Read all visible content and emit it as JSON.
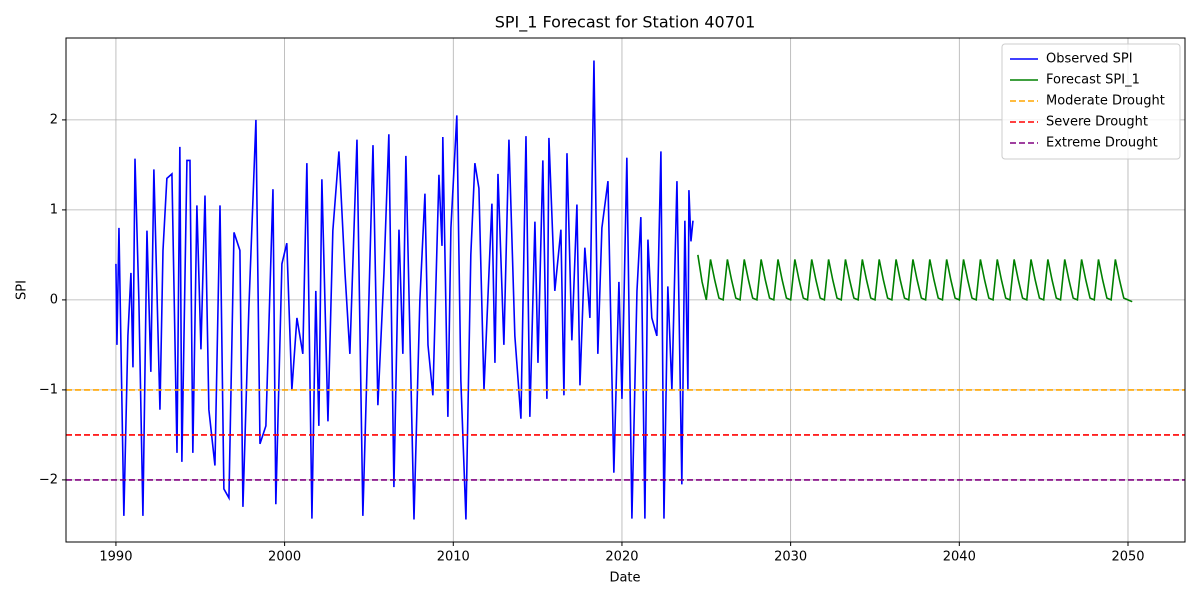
{
  "chart_data": {
    "type": "line",
    "title": "SPI_1 Forecast for Station 40701",
    "x_label": "Date",
    "y_label": "SPI",
    "xlim": [
      1987.04,
      2053.38
    ],
    "ylim": [
      -2.69,
      2.91
    ],
    "xticks": [
      1990,
      2000,
      2010,
      2020,
      2030,
      2040,
      2050
    ],
    "yticks": [
      {
        "value": -2,
        "label": "−2"
      },
      {
        "value": -1,
        "label": "−1"
      },
      0,
      1,
      2
    ],
    "grid": true,
    "legend": "upper right",
    "series": [
      {
        "name": "Observed SPI",
        "color": "#0000ff",
        "x": [
          1990.0,
          1990.06,
          1990.18,
          1990.47,
          1990.71,
          1990.89,
          1991.01,
          1991.13,
          1991.36,
          1991.6,
          1991.84,
          1992.07,
          1992.25,
          1992.61,
          1992.79,
          1993.02,
          1993.32,
          1993.62,
          1993.79,
          1993.91,
          1994.21,
          1994.39,
          1994.56,
          1994.8,
          1995.04,
          1995.28,
          1995.51,
          1995.87,
          1996.17,
          1996.4,
          1996.7,
          1997.0,
          1997.35,
          1997.53,
          1997.88,
          1998.3,
          1998.54,
          1998.89,
          1999.31,
          1999.48,
          1999.84,
          2000.13,
          2000.43,
          2000.73,
          2001.08,
          2001.32,
          2001.62,
          2001.85,
          2002.03,
          2002.21,
          2002.57,
          2002.86,
          2003.22,
          2003.58,
          2003.87,
          2004.29,
          2004.64,
          2004.94,
          2005.24,
          2005.53,
          2005.89,
          2006.18,
          2006.48,
          2006.78,
          2007.01,
          2007.19,
          2007.49,
          2007.67,
          2008.02,
          2008.32,
          2008.5,
          2008.79,
          2009.15,
          2009.33,
          2009.38,
          2009.68,
          2009.86,
          2010.21,
          2010.45,
          2010.75,
          2011.04,
          2011.28,
          2011.52,
          2011.82,
          2012.29,
          2012.47,
          2012.65,
          2013.0,
          2013.3,
          2013.65,
          2014.01,
          2014.31,
          2014.54,
          2014.84,
          2015.02,
          2015.31,
          2015.55,
          2015.67,
          2016.02,
          2016.38,
          2016.56,
          2016.74,
          2017.03,
          2017.33,
          2017.51,
          2017.8,
          2018.1,
          2018.34,
          2018.57,
          2018.81,
          2019.17,
          2019.52,
          2019.82,
          2020.0,
          2020.29,
          2020.59,
          2020.89,
          2021.12,
          2021.36,
          2021.54,
          2021.77,
          2022.07,
          2022.31,
          2022.49,
          2022.72,
          2022.96,
          2023.26,
          2023.55,
          2023.73,
          2023.91,
          2023.97,
          2024.09,
          2024.21
        ],
        "values": [
          0.4,
          -0.5,
          0.8,
          -2.4,
          -0.4,
          0.3,
          -0.75,
          1.57,
          0.0,
          -2.4,
          0.77,
          -0.8,
          1.45,
          -1.22,
          0.55,
          1.35,
          1.4,
          -1.7,
          1.7,
          -1.8,
          1.55,
          1.55,
          -1.7,
          1.05,
          -0.55,
          1.16,
          -1.22,
          -1.84,
          1.05,
          -2.1,
          -2.2,
          0.75,
          0.55,
          -2.3,
          -0.1,
          2.0,
          -1.6,
          -1.4,
          1.23,
          -2.27,
          0.4,
          0.63,
          -1.0,
          -0.2,
          -0.6,
          1.52,
          -2.43,
          0.1,
          -1.4,
          1.34,
          -1.35,
          0.77,
          1.65,
          0.3,
          -0.6,
          1.78,
          -2.4,
          -0.4,
          1.72,
          -1.17,
          0.3,
          1.84,
          -2.08,
          0.78,
          -0.6,
          1.6,
          -0.9,
          -2.44,
          0.0,
          1.18,
          -0.5,
          -1.06,
          1.39,
          0.6,
          1.81,
          -1.3,
          0.8,
          2.05,
          -0.9,
          -2.44,
          0.5,
          1.52,
          1.24,
          -1.0,
          1.07,
          -0.7,
          1.4,
          -0.5,
          1.78,
          -0.4,
          -1.32,
          1.82,
          -1.3,
          0.87,
          -0.7,
          1.55,
          -1.1,
          1.8,
          0.1,
          0.78,
          -1.06,
          1.63,
          -0.45,
          1.06,
          -0.95,
          0.58,
          -0.2,
          2.66,
          -0.6,
          0.8,
          1.32,
          -1.92,
          0.2,
          -1.1,
          1.58,
          -2.43,
          0.1,
          0.92,
          -2.43,
          0.67,
          -0.2,
          -0.4,
          1.65,
          -2.43,
          0.15,
          -1.0,
          1.32,
          -2.05,
          0.88,
          -1.0,
          1.22,
          0.65,
          0.88
        ]
      },
      {
        "name": "Forecast SPI_1",
        "color": "#008000",
        "x": [
          2024.5,
          2024.75,
          2025,
          2025.25,
          2025.5,
          2025.75,
          2026,
          2026.25,
          2026.5,
          2026.75,
          2027,
          2027.25,
          2027.5,
          2027.75,
          2028,
          2028.25,
          2028.5,
          2028.75,
          2029,
          2029.25,
          2029.5,
          2029.75,
          2030,
          2030.25,
          2030.5,
          2030.75,
          2031,
          2031.25,
          2031.5,
          2031.75,
          2032,
          2032.25,
          2032.5,
          2032.75,
          2033,
          2033.25,
          2033.5,
          2033.75,
          2034,
          2034.25,
          2034.5,
          2034.75,
          2035,
          2035.25,
          2035.5,
          2035.75,
          2036,
          2036.25,
          2036.5,
          2036.75,
          2037,
          2037.25,
          2037.5,
          2037.75,
          2038,
          2038.25,
          2038.5,
          2038.75,
          2039,
          2039.25,
          2039.5,
          2039.75,
          2040,
          2040.25,
          2040.5,
          2040.75,
          2041,
          2041.25,
          2041.5,
          2041.75,
          2042,
          2042.25,
          2042.5,
          2042.75,
          2043,
          2043.25,
          2043.5,
          2043.75,
          2044,
          2044.25,
          2044.5,
          2044.75,
          2045,
          2045.25,
          2045.5,
          2045.75,
          2046,
          2046.25,
          2046.5,
          2046.75,
          2047,
          2047.25,
          2047.5,
          2047.75,
          2048,
          2048.25,
          2048.5,
          2048.75,
          2049,
          2049.25,
          2049.5,
          2049.75,
          2050,
          2050.25
        ],
        "values": [
          0.5,
          0.2,
          0.0,
          0.45,
          0.22,
          0.02,
          0.0,
          0.45,
          0.22,
          0.02,
          0.0,
          0.45,
          0.22,
          0.02,
          0.0,
          0.45,
          0.22,
          0.02,
          0.0,
          0.45,
          0.22,
          0.02,
          0.0,
          0.45,
          0.22,
          0.02,
          0.0,
          0.45,
          0.22,
          0.02,
          0.0,
          0.45,
          0.22,
          0.02,
          0.0,
          0.45,
          0.22,
          0.02,
          0.0,
          0.45,
          0.22,
          0.02,
          0.0,
          0.45,
          0.22,
          0.02,
          0.0,
          0.45,
          0.22,
          0.02,
          0.0,
          0.45,
          0.22,
          0.02,
          0.0,
          0.45,
          0.22,
          0.02,
          0.0,
          0.45,
          0.22,
          0.02,
          0.0,
          0.45,
          0.22,
          0.02,
          0.0,
          0.45,
          0.22,
          0.02,
          0.0,
          0.45,
          0.22,
          0.02,
          0.0,
          0.45,
          0.22,
          0.02,
          0.0,
          0.45,
          0.22,
          0.02,
          0.0,
          0.45,
          0.22,
          0.02,
          0.0,
          0.45,
          0.22,
          0.02,
          0.0,
          0.45,
          0.22,
          0.02,
          0.0,
          0.45,
          0.22,
          0.02,
          0.0,
          0.45,
          0.22,
          0.02,
          0.0,
          -0.02
        ]
      }
    ],
    "hlines": [
      {
        "name": "Moderate Drought",
        "color": "#ffa500",
        "value": -1
      },
      {
        "name": "Severe Drought",
        "color": "#ff0000",
        "value": -1.5
      },
      {
        "name": "Extreme Drought",
        "color": "#800080",
        "value": -2
      }
    ]
  }
}
